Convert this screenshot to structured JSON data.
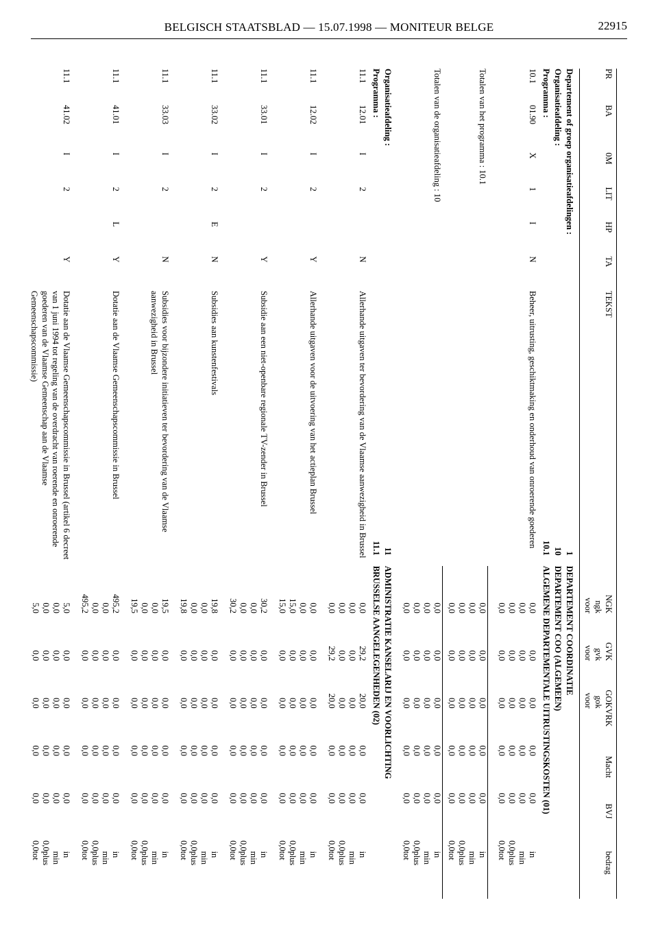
{
  "header": {
    "title": "BELGISCH STAATSBLAD — 15.07.1998 — MONITEUR BELGE",
    "page_number": "22915"
  },
  "columns": {
    "pr": "PR",
    "ba": "BA",
    "om": "0M",
    "lit": "LIT",
    "hp": "HP",
    "ta": "TA",
    "tekst": "TEKST",
    "ngk": "NGK",
    "ngk_sub1": "ngk",
    "ngk_sub2": "voor",
    "gvk": "GVK",
    "gvk_sub1": "gvk",
    "gvk_sub2": "voor",
    "gok": "GOK",
    "gok_sub1": "gok",
    "gok_sub2": "voor",
    "vrk": "VRK",
    "macht": "Macht",
    "bvj": "BVJ",
    "bedrag": "bedrag"
  },
  "section1": {
    "line1": "Departement of groep organisatieafdelingen :",
    "line2": "Organisatieafdeling :",
    "line3": "Programma :",
    "code1": "1",
    "code2": "10",
    "code3": "10.1",
    "title1": "DEPARTEMENT COORDINATIE",
    "title2": "DEPARTEMENT COO (ALGEMEEN)",
    "title3": "ALGEMENE DEPARTEMENTALE UITRUSTINGSKOSTEN (01)"
  },
  "bedrag_labels": {
    "in": "in",
    "min": "min",
    "plus": "plus",
    "tot": "tot"
  },
  "rows1": [
    {
      "pr": "10.1",
      "ba": "01.90",
      "om": "X",
      "lit": "1",
      "hp": "I",
      "ta": "N",
      "tekst": "Beheer, uitrusting, geschiktmaking en onderhoud van onroerende goederen",
      "ngk": [
        "0,0",
        "0,0",
        "0,0",
        "0,0"
      ],
      "gvk": [
        "0,0",
        "0,0",
        "0,0",
        "0,0"
      ],
      "gok": [
        "0,0",
        "0,0",
        "0,0",
        "0,0"
      ],
      "vrk": [
        "0,0",
        "0,0",
        "0,0",
        "0,0"
      ],
      "macht": [
        "0,0",
        "0,0",
        "0,0",
        "0,0"
      ],
      "bvj": [
        "0,0",
        "0,0"
      ]
    }
  ],
  "totals1": {
    "label": "Totalen van het programma : 10.1",
    "ngk": [
      "0,0",
      "0,0",
      "0,0",
      "0,0"
    ],
    "gvk": [
      "0,0",
      "0,0",
      "0,0",
      "0,0"
    ],
    "gok": [
      "0,0",
      "0,0",
      "0,0",
      "0,0"
    ],
    "vrk": [
      "0,0",
      "0,0",
      "0,0",
      "0,0"
    ],
    "macht": [
      "0,0",
      "0,0",
      "0,0",
      "0,0"
    ],
    "bvj": [
      "0,0",
      "0,0"
    ]
  },
  "totals2": {
    "label": "Totalen van de organisatieafdeling : 10",
    "ngk": [
      "0,0",
      "0,0",
      "0,0",
      "0,0"
    ],
    "gvk": [
      "0,0",
      "0,0",
      "0,0",
      "0,0"
    ],
    "gok": [
      "0,0",
      "0,0",
      "0,0",
      "0,0"
    ],
    "vrk": [
      "0,0",
      "0,0",
      "0,0",
      "0,0"
    ],
    "macht": [
      "0,0",
      "0,0",
      "0,0",
      "0,0"
    ],
    "bvj": [
      "0,0",
      "0,0"
    ]
  },
  "section2": {
    "line1": "Organisatieafdeling :",
    "line2": "Programma :",
    "code1": "11",
    "code2": "11.1",
    "title1": "ADMINISTRATIE KANSELARIJ EN VOORLICHTING",
    "title2": "BRUSSELSE AANGELEGENHEDEN (02)"
  },
  "rows2": [
    {
      "pr": "11.1",
      "ba": "12.01",
      "om": "I",
      "lit": "2",
      "hp": "",
      "ta": "N",
      "tekst": "Allerhande uitgaven ter bevordering van de Vlaamse aanwezigheid in Brussel",
      "ngk": [
        "0,0",
        "0,0",
        "0,0",
        "0,0"
      ],
      "gvk": [
        "29,2",
        "0,0",
        "0,0",
        "29,2"
      ],
      "gok": [
        "20,0",
        "0,0",
        "0,0",
        "20,0"
      ],
      "vrk": [
        "0,0",
        "0,0",
        "0,0",
        "0,0"
      ],
      "macht": [
        "0,0",
        "0,0",
        "0,0",
        "0,0"
      ],
      "bvj": [
        "0,0",
        "0,0"
      ]
    },
    {
      "pr": "11.1",
      "ba": "12.02",
      "om": "I",
      "lit": "2",
      "hp": "",
      "ta": "Y",
      "tekst": "Allerhande uitgaven voor de uitvoering van het actieplan Brussel",
      "ngk": [
        "0,0",
        "0,0",
        "15,0",
        "15,0"
      ],
      "gvk": [
        "0,0",
        "0,0",
        "0,0",
        "0,0"
      ],
      "gok": [
        "0,0",
        "0,0",
        "0,0",
        "0,0"
      ],
      "vrk": [
        "0,0",
        "0,0",
        "0,0",
        "0,0"
      ],
      "macht": [
        "0,0",
        "0,0",
        "0,0",
        "0,0"
      ],
      "bvj": [
        "0,0",
        "0,0"
      ]
    },
    {
      "pr": "11.1",
      "ba": "33.01",
      "om": "I",
      "lit": "2",
      "hp": "",
      "ta": "Y",
      "tekst": "Subsidie aan een niet-openbare regionale TV-zender in Brussel",
      "ngk": [
        "30,2",
        "0,0",
        "0,0",
        "30,2"
      ],
      "gvk": [
        "0,0",
        "0,0",
        "0,0",
        "0,0"
      ],
      "gok": [
        "0,0",
        "0,0",
        "0,0",
        "0,0"
      ],
      "vrk": [
        "0,0",
        "0,0",
        "0,0",
        "0,0"
      ],
      "macht": [
        "0,0",
        "0,0",
        "0,0",
        "0,0"
      ],
      "bvj": [
        "0,0",
        "0,0"
      ]
    },
    {
      "pr": "11.1",
      "ba": "33.02",
      "om": "I",
      "lit": "2",
      "hp": "E",
      "ta": "N",
      "tekst": "Subsidies aan kunstenfestivals",
      "ngk": [
        "19,8",
        "0,0",
        "0,0",
        "19,8"
      ],
      "gvk": [
        "0,0",
        "0,0",
        "0,0",
        "0,0"
      ],
      "gok": [
        "0,0",
        "0,0",
        "0,0",
        "0,0"
      ],
      "vrk": [
        "0,0",
        "0,0",
        "0,0",
        "0,0"
      ],
      "macht": [
        "0,0",
        "0,0",
        "0,0",
        "0,0"
      ],
      "bvj": [
        "0,0",
        "0,0"
      ]
    },
    {
      "pr": "11.1",
      "ba": "33.03",
      "om": "I",
      "lit": "2",
      "hp": "",
      "ta": "N",
      "tekst": "Subsidies voor bijzondere initiatieven ter bevordering van de Vlaamse aanwezigheid in Brussel",
      "ngk": [
        "19,5",
        "0,0",
        "0,0",
        "19,5"
      ],
      "gvk": [
        "0,0",
        "0,0",
        "0,0",
        "0,0"
      ],
      "gok": [
        "0,0",
        "0,0",
        "0,0",
        "0,0"
      ],
      "vrk": [
        "0,0",
        "0,0",
        "0,0",
        "0,0"
      ],
      "macht": [
        "0,0",
        "0,0",
        "0,0",
        "0,0"
      ],
      "bvj": [
        "0,0",
        "0,0"
      ]
    },
    {
      "pr": "11.1",
      "ba": "41.01",
      "om": "I",
      "lit": "2",
      "hp": "L",
      "ta": "Y",
      "tekst": "Dotatie aan de Vlaamse Gemeenschapscommissie in Brussel",
      "ngk": [
        "495,2",
        "0,0",
        "0,0",
        "495,2"
      ],
      "gvk": [
        "0,0",
        "0,0",
        "0,0",
        "0,0"
      ],
      "gok": [
        "0,0",
        "0,0",
        "0,0",
        "0,0"
      ],
      "vrk": [
        "0,0",
        "0,0",
        "0,0",
        "0,0"
      ],
      "macht": [
        "0,0",
        "0,0",
        "0,0",
        "0,0"
      ],
      "bvj": [
        "0,0",
        "0,0"
      ]
    },
    {
      "pr": "11.1",
      "ba": "41.02",
      "om": "I",
      "lit": "2",
      "hp": "",
      "ta": "Y",
      "tekst": "Dotatie aan de Vlaamse Gemeenschapscommissie in Brussel (artikel 6 decreet van 1 juni 1994 tot regeling van de overdracht van roerende en onroerende goederen van de Vlaamse Gemeenschap aan de Vlaamse Gemeenschapscommissie)",
      "ngk": [
        "5,0",
        "0,0",
        "0,0",
        "5,0"
      ],
      "gvk": [
        "0,0",
        "0,0",
        "0,0",
        "0,0"
      ],
      "gok": [
        "0,0",
        "0,0",
        "0,0",
        "0,0"
      ],
      "vrk": [
        "0,0",
        "0,0",
        "0,0",
        "0,0"
      ],
      "macht": [
        "0,0",
        "0,0",
        "0,0",
        "0,0"
      ],
      "bvj": [
        "0,0",
        "0,0"
      ]
    }
  ]
}
